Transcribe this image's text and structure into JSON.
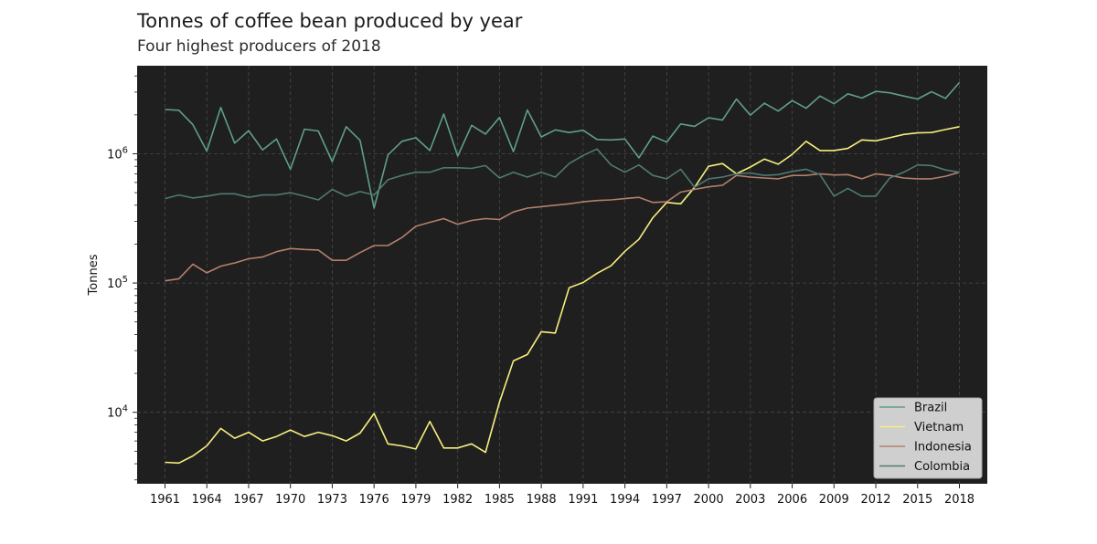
{
  "chart_data": {
    "type": "line",
    "title": "Tonnes of coffee bean produced by year",
    "subtitle": "Four highest producers of 2018",
    "xlabel": "",
    "ylabel": "Tonnes",
    "yscale": "log",
    "ylim": [
      2800,
      4800000
    ],
    "xlim": [
      1959,
      2020
    ],
    "grid": true,
    "background": "#1f1f1f",
    "legend_position": "lower-right",
    "x_ticks": [
      1961,
      1964,
      1967,
      1970,
      1973,
      1976,
      1979,
      1982,
      1985,
      1988,
      1991,
      1994,
      1997,
      2000,
      2003,
      2006,
      2009,
      2012,
      2015,
      2018
    ],
    "y_ticks": [
      {
        "value": 10000,
        "mantissa": "10",
        "exponent": "4"
      },
      {
        "value": 100000,
        "mantissa": "10",
        "exponent": "5"
      },
      {
        "value": 1000000,
        "mantissa": "10",
        "exponent": "6"
      }
    ],
    "x": [
      1961,
      1962,
      1963,
      1964,
      1965,
      1966,
      1967,
      1968,
      1969,
      1970,
      1971,
      1972,
      1973,
      1974,
      1975,
      1976,
      1977,
      1978,
      1979,
      1980,
      1981,
      1982,
      1983,
      1984,
      1985,
      1986,
      1987,
      1988,
      1989,
      1990,
      1991,
      1992,
      1993,
      1994,
      1995,
      1996,
      1997,
      1998,
      1999,
      2000,
      2001,
      2002,
      2003,
      2004,
      2005,
      2006,
      2007,
      2008,
      2009,
      2010,
      2011,
      2012,
      2013,
      2014,
      2015,
      2016,
      2017,
      2018
    ],
    "series": [
      {
        "name": "Brazil",
        "color": "#5f9e8a",
        "values": [
          2200000,
          2170000,
          1680000,
          1050000,
          2280000,
          1210000,
          1510000,
          1070000,
          1300000,
          760000,
          1550000,
          1500000,
          870000,
          1620000,
          1270000,
          380000,
          980000,
          1250000,
          1330000,
          1060000,
          2030000,
          960000,
          1660000,
          1420000,
          1910000,
          1040000,
          2180000,
          1350000,
          1530000,
          1460000,
          1520000,
          1290000,
          1280000,
          1300000,
          930000,
          1370000,
          1230000,
          1700000,
          1630000,
          1900000,
          1820000,
          2650000,
          1990000,
          2460000,
          2140000,
          2580000,
          2250000,
          2800000,
          2440000,
          2910000,
          2700000,
          3040000,
          2960000,
          2800000,
          2650000,
          3020000,
          2680000,
          3560000
        ]
      },
      {
        "name": "Vietnam",
        "color": "#f7ee7f",
        "values": [
          4100,
          4050,
          4600,
          5500,
          7500,
          6300,
          7000,
          6000,
          6500,
          7300,
          6500,
          7000,
          6600,
          6000,
          6900,
          9800,
          5700,
          5500,
          5200,
          8500,
          5300,
          5300,
          5700,
          4900,
          12000,
          25000,
          28000,
          42000,
          41000,
          92000,
          101000,
          119000,
          136000,
          176000,
          218000,
          320000,
          420000,
          410000,
          550000,
          800000,
          840000,
          700000,
          790000,
          910000,
          830000,
          990000,
          1250000,
          1060000,
          1060000,
          1100000,
          1280000,
          1260000,
          1330000,
          1410000,
          1450000,
          1460000,
          1540000,
          1620000
        ]
      },
      {
        "name": "Indonesia",
        "color": "#b4806c",
        "values": [
          104000,
          108000,
          140000,
          120000,
          135000,
          143000,
          154000,
          159000,
          175000,
          185000,
          182000,
          180000,
          150000,
          150000,
          172000,
          195000,
          195000,
          225000,
          275000,
          295000,
          315000,
          285000,
          305000,
          315000,
          310000,
          355000,
          380000,
          390000,
          400000,
          410000,
          425000,
          435000,
          440000,
          450000,
          460000,
          420000,
          425000,
          505000,
          530000,
          555000,
          570000,
          680000,
          660000,
          650000,
          640000,
          680000,
          680000,
          700000,
          685000,
          690000,
          640000,
          700000,
          680000,
          650000,
          640000,
          640000,
          670000,
          720000
        ]
      },
      {
        "name": "Colombia",
        "color": "#4e7a73",
        "values": [
          450000,
          480000,
          455000,
          470000,
          490000,
          490000,
          460000,
          480000,
          480000,
          500000,
          470000,
          440000,
          530000,
          470000,
          510000,
          480000,
          630000,
          680000,
          720000,
          720000,
          780000,
          780000,
          770000,
          810000,
          650000,
          720000,
          660000,
          720000,
          660000,
          840000,
          970000,
          1090000,
          820000,
          720000,
          820000,
          680000,
          640000,
          760000,
          550000,
          640000,
          660000,
          700000,
          710000,
          680000,
          690000,
          730000,
          760000,
          690000,
          470000,
          540000,
          470000,
          470000,
          650000,
          720000,
          820000,
          810000,
          750000,
          720000
        ]
      }
    ]
  }
}
